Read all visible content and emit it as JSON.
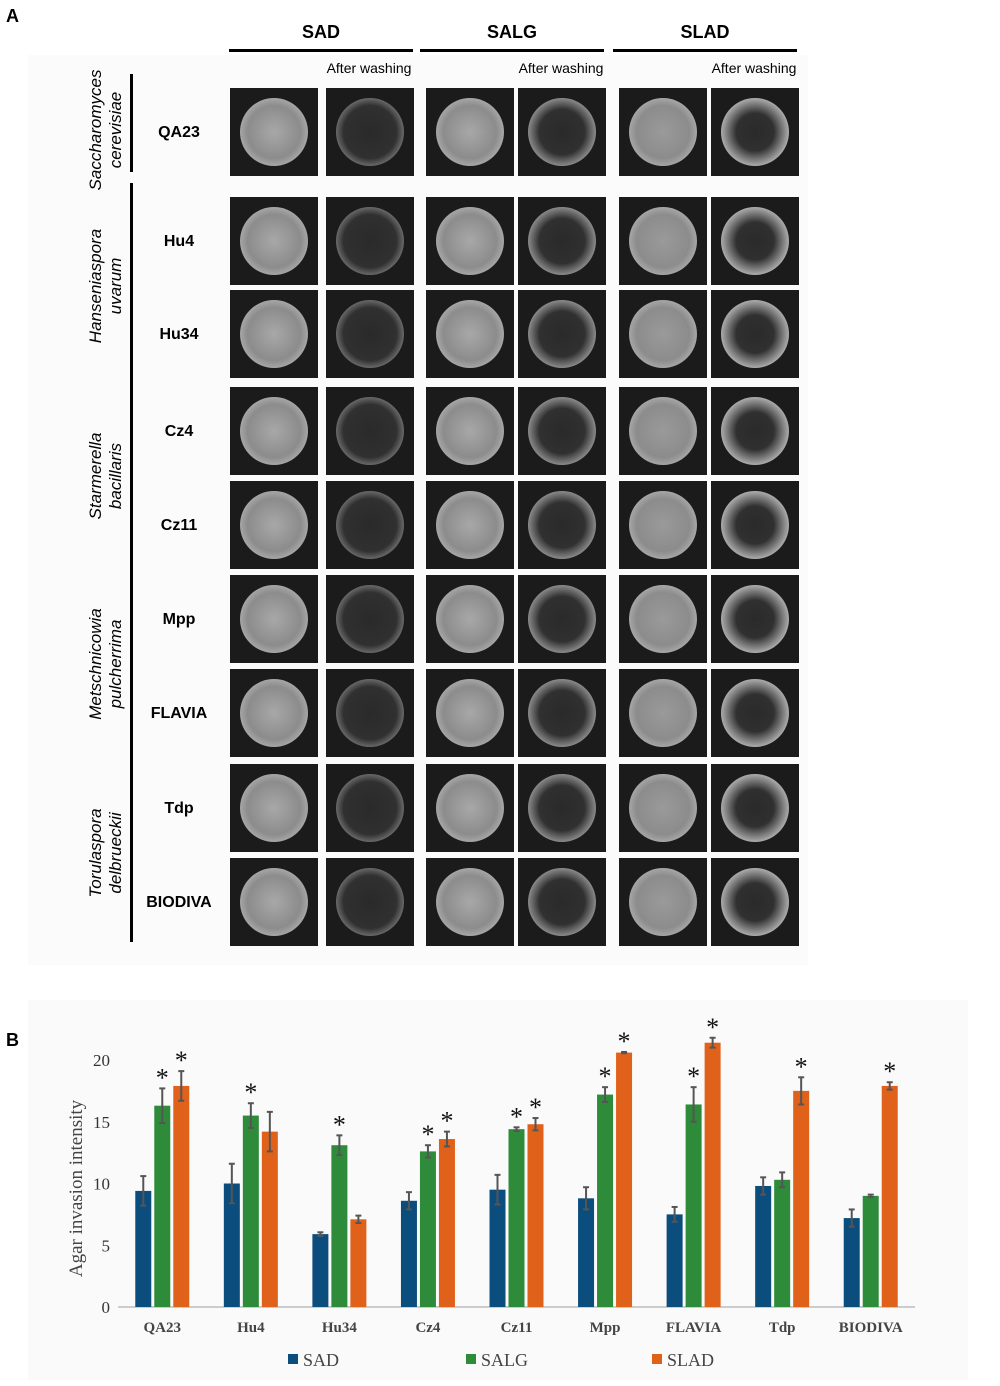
{
  "panel_a": {
    "label": "A",
    "conditions": [
      "SAD",
      "SALG",
      "SLAD"
    ],
    "after_washing_label": "After washing",
    "species": [
      {
        "name": "Saccharomyces cerevisiae",
        "line1": "Saccharomyces",
        "line2": "cerevisiae",
        "strains": [
          "QA23"
        ]
      },
      {
        "name": "Hanseniaspora uvarum",
        "line1": "Hanseniaspora",
        "line2": "uvarum",
        "strains": [
          "Hu4",
          "Hu34"
        ]
      },
      {
        "name": "Starmerella bacillaris",
        "line1": "Starmerella",
        "line2": "bacillaris",
        "strains": [
          "Cz4",
          "Cz11"
        ]
      },
      {
        "name": "Metschnicowia pulcherrima",
        "line1": "Metschnicowia",
        "line2": "pulcherrima",
        "strains": [
          "Mpp",
          "FLAVIA"
        ]
      },
      {
        "name": "Torulaspora delbrueckii",
        "line1": "Torulaspora",
        "line2": "delbrueckii",
        "strains": [
          "Tdp",
          "BIODIVA"
        ]
      }
    ]
  },
  "panel_b": {
    "label": "B"
  },
  "chart_data": {
    "type": "bar",
    "title": "",
    "xlabel": "",
    "ylabel": "Agar invasion intensity",
    "ylim": [
      0,
      20
    ],
    "yticks": [
      0,
      5,
      10,
      15,
      20
    ],
    "categories": [
      "QA23",
      "Hu4",
      "Hu34",
      "Cz4",
      "Cz11",
      "Mpp",
      "FLAVIA",
      "Tdp",
      "BIODIVA"
    ],
    "series": [
      {
        "name": "SAD",
        "color": "#0b4d7d",
        "values": [
          9.4,
          10.0,
          5.9,
          8.6,
          9.5,
          8.8,
          7.5,
          9.8,
          7.2
        ],
        "errors": [
          1.2,
          1.6,
          0.15,
          0.7,
          1.2,
          0.9,
          0.6,
          0.7,
          0.7
        ]
      },
      {
        "name": "SALG",
        "color": "#2e8b3a",
        "values": [
          16.3,
          15.5,
          13.1,
          12.6,
          14.4,
          17.2,
          16.4,
          10.3,
          9.0
        ],
        "errors": [
          1.4,
          1.0,
          0.8,
          0.5,
          0.15,
          0.6,
          1.4,
          0.6,
          0.1
        ]
      },
      {
        "name": "SLAD",
        "color": "#e0621a",
        "values": [
          17.9,
          14.2,
          7.1,
          13.6,
          14.8,
          20.6,
          21.4,
          17.5,
          17.9
        ],
        "errors": [
          1.2,
          1.6,
          0.3,
          0.6,
          0.5,
          0.05,
          0.4,
          1.1,
          0.3
        ]
      }
    ],
    "significance": [
      {
        "category": "QA23",
        "series": [
          "SALG",
          "SLAD"
        ]
      },
      {
        "category": "Hu4",
        "series": [
          "SALG"
        ]
      },
      {
        "category": "Hu34",
        "series": [
          "SALG"
        ]
      },
      {
        "category": "Cz4",
        "series": [
          "SALG",
          "SLAD"
        ]
      },
      {
        "category": "Cz11",
        "series": [
          "SALG",
          "SLAD"
        ]
      },
      {
        "category": "Mpp",
        "series": [
          "SALG",
          "SLAD"
        ]
      },
      {
        "category": "FLAVIA",
        "series": [
          "SALG",
          "SLAD"
        ]
      },
      {
        "category": "Tdp",
        "series": [
          "SLAD"
        ]
      },
      {
        "category": "BIODIVA",
        "series": [
          "SLAD"
        ]
      }
    ],
    "significance_marker": "*",
    "legend_position": "bottom"
  }
}
